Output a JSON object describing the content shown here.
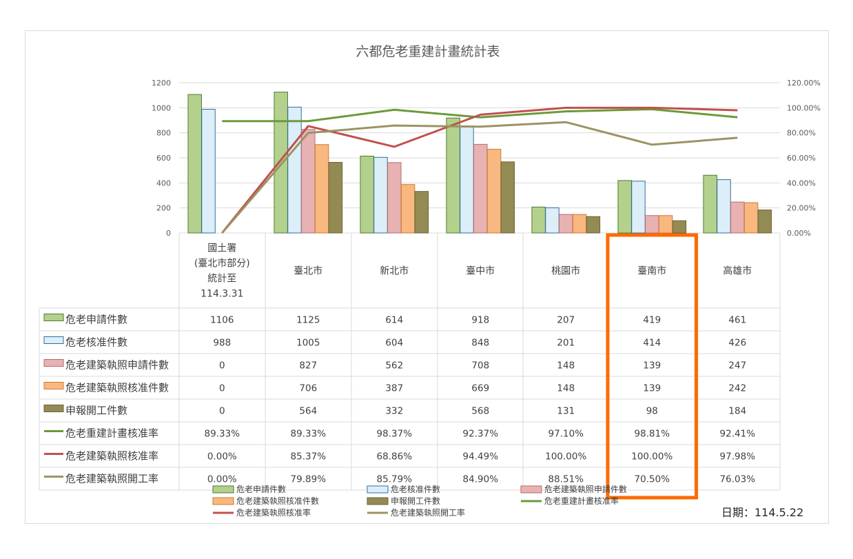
{
  "chart_data": {
    "type": "bar",
    "title": "六都危老重建計畫統計表",
    "categories": [
      [
        "國土署",
        "(臺北市部分)",
        "統計至",
        "114.3.31"
      ],
      [
        "臺北市"
      ],
      [
        "新北市"
      ],
      [
        "臺中市"
      ],
      [
        "桃園市"
      ],
      [
        "臺南市"
      ],
      [
        "高雄市"
      ]
    ],
    "left_axis": {
      "min": 0,
      "max": 1200,
      "step": 200,
      "ticks": [
        "0",
        "200",
        "400",
        "600",
        "800",
        "1000",
        "1200"
      ]
    },
    "right_axis": {
      "min": 0,
      "max": 1.2,
      "step": 0.2,
      "ticks": [
        "0.00%",
        "20.00%",
        "40.00%",
        "60.00%",
        "80.00%",
        "100.00%",
        "120.00%"
      ]
    },
    "grid": true,
    "legend_position": "bottom",
    "highlight_category": 5,
    "series": [
      {
        "name": "危老申請件數",
        "type": "bar",
        "color": "#b3d18c",
        "stroke": "#4e7a2e",
        "values": [
          1106,
          1125,
          614,
          918,
          207,
          419,
          461
        ],
        "labels": [
          "1106",
          "1125",
          "614",
          "918",
          "207",
          "419",
          "461"
        ]
      },
      {
        "name": "危老核准件數",
        "type": "bar",
        "color": "#dceef8",
        "stroke": "#2e6d9e",
        "values": [
          988,
          1005,
          604,
          848,
          201,
          414,
          426
        ],
        "labels": [
          "988",
          "1005",
          "604",
          "848",
          "201",
          "414",
          "426"
        ]
      },
      {
        "name": "危老建築執照申請件數",
        "type": "bar",
        "color": "#e8b2b2",
        "stroke": "#b56b6b",
        "values": [
          0,
          827,
          562,
          708,
          148,
          139,
          247
        ],
        "labels": [
          "0",
          "827",
          "562",
          "708",
          "148",
          "139",
          "247"
        ]
      },
      {
        "name": "危老建築執照核准件數",
        "type": "bar",
        "color": "#f8b880",
        "stroke": "#d17a31",
        "values": [
          0,
          706,
          387,
          669,
          148,
          139,
          242
        ],
        "labels": [
          "0",
          "706",
          "387",
          "669",
          "148",
          "139",
          "242"
        ]
      },
      {
        "name": "申報開工件數",
        "type": "bar",
        "color": "#948a54",
        "stroke": "#6b6338",
        "values": [
          0,
          564,
          332,
          568,
          131,
          98,
          184
        ],
        "labels": [
          "0",
          "564",
          "332",
          "568",
          "131",
          "98",
          "184"
        ]
      },
      {
        "name": "危老重建計畫核准率",
        "type": "line",
        "color": "#6b9a3a",
        "values": [
          0.8933,
          0.8933,
          0.9837,
          0.9237,
          0.971,
          0.9881,
          0.9241
        ],
        "labels": [
          "89.33%",
          "89.33%",
          "98.37%",
          "92.37%",
          "97.10%",
          "98.81%",
          "92.41%"
        ]
      },
      {
        "name": "危老建築執照核准率",
        "type": "line",
        "color": "#c0504d",
        "values": [
          0,
          0.8537,
          0.6886,
          0.9449,
          1.0,
          1.0,
          0.9798
        ],
        "labels": [
          "0.00%",
          "85.37%",
          "68.86%",
          "94.49%",
          "100.00%",
          "100.00%",
          "97.98%"
        ]
      },
      {
        "name": "危老建築執照開工率",
        "type": "line",
        "color": "#9b9363",
        "values": [
          0,
          0.7989,
          0.8579,
          0.849,
          0.8851,
          0.705,
          0.7603
        ],
        "labels": [
          "0.00%",
          "79.89%",
          "85.79%",
          "84.90%",
          "88.51%",
          "70.50%",
          "76.03%"
        ]
      }
    ],
    "legend_order": [
      0,
      1,
      2,
      3,
      4,
      5,
      6,
      7
    ],
    "date_label": "日期：114.5.22"
  }
}
